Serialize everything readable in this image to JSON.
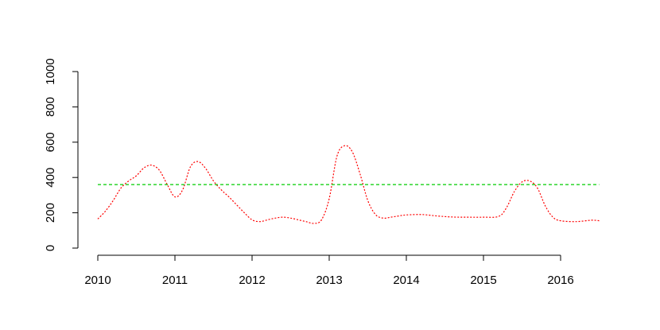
{
  "chart_data": {
    "type": "line",
    "title": "",
    "xlabel": "",
    "ylabel": "",
    "xlim": [
      2010,
      2016.5
    ],
    "ylim": [
      0,
      1000
    ],
    "x_ticks": [
      2010,
      2011,
      2012,
      2013,
      2014,
      2015,
      2016
    ],
    "x_tick_labels": [
      "2010",
      "2011",
      "2012",
      "2013",
      "2014",
      "2015",
      "2016"
    ],
    "y_ticks": [
      0,
      200,
      400,
      600,
      800,
      1000
    ],
    "y_tick_labels": [
      "0",
      "200",
      "400",
      "600",
      "800",
      "1000"
    ],
    "grid": false,
    "series": [
      {
        "color": "#ff0000",
        "line_style": "dotted",
        "x": [
          2010.0,
          2010.1,
          2010.2,
          2010.3,
          2010.4,
          2010.5,
          2010.6,
          2010.7,
          2010.8,
          2010.9,
          2011.0,
          2011.1,
          2011.2,
          2011.3,
          2011.4,
          2011.5,
          2011.6,
          2011.7,
          2011.8,
          2011.9,
          2012.0,
          2012.1,
          2012.2,
          2012.3,
          2012.4,
          2012.5,
          2012.6,
          2012.7,
          2012.8,
          2012.9,
          2013.0,
          2013.1,
          2013.2,
          2013.3,
          2013.4,
          2013.5,
          2013.6,
          2013.7,
          2013.8,
          2013.9,
          2014.0,
          2014.2,
          2014.4,
          2014.6,
          2014.8,
          2015.0,
          2015.2,
          2015.3,
          2015.4,
          2015.5,
          2015.6,
          2015.7,
          2015.8,
          2015.9,
          2016.0,
          2016.2,
          2016.4,
          2016.5
        ],
        "y": [
          165,
          210,
          270,
          340,
          380,
          410,
          455,
          470,
          440,
          360,
          290,
          330,
          460,
          490,
          450,
          380,
          330,
          290,
          245,
          200,
          160,
          150,
          160,
          170,
          175,
          170,
          160,
          150,
          140,
          160,
          280,
          520,
          580,
          545,
          420,
          270,
          190,
          170,
          175,
          182,
          188,
          190,
          182,
          176,
          175,
          175,
          180,
          230,
          320,
          375,
          380,
          340,
          240,
          175,
          155,
          150,
          158,
          155
        ]
      },
      {
        "color": "#00cc00",
        "line_style": "dashed",
        "x": [
          2010.0,
          2016.5
        ],
        "y": [
          360,
          360
        ]
      }
    ]
  }
}
